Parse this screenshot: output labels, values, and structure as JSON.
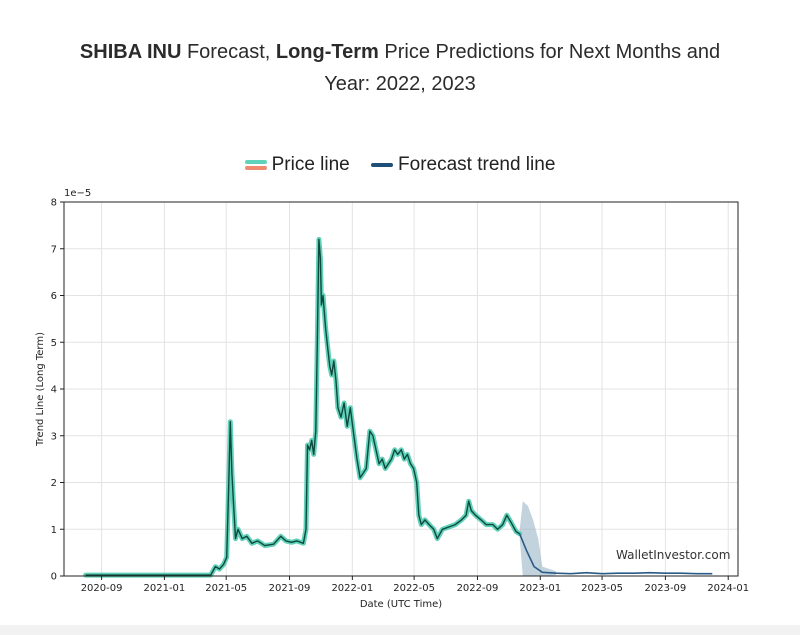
{
  "title": {
    "part1_bold": "SHIBA INU",
    "part2": " Forecast, ",
    "part3_bold": "Long-Term",
    "part4": " Price Predictions for Next Months and",
    "line2": "Year: 2022, 2023"
  },
  "legend": [
    {
      "label": "Price line",
      "colors": [
        "#5fd3b9",
        "#ef8a6f"
      ]
    },
    {
      "label": "Forecast trend line",
      "colors": [
        "#1f4e79"
      ]
    }
  ],
  "watermark": "WalletInvestor.com",
  "chart_data": {
    "type": "line",
    "xlabel": "Date (UTC Time)",
    "ylabel": "Trend Line (Long Term)",
    "y_multiplier": "1e−5",
    "ylim": [
      0,
      8
    ],
    "xlim": [
      "2020-06-20",
      "2024-01-20"
    ],
    "yticks": [
      0,
      1,
      2,
      3,
      4,
      5,
      6,
      7,
      8
    ],
    "xticks": [
      "2020-09",
      "2021-01",
      "2021-05",
      "2021-09",
      "2022-01",
      "2022-05",
      "2022-09",
      "2023-01",
      "2023-05",
      "2023-09",
      "2024-01"
    ],
    "grid": true,
    "legend_position": "top-center",
    "colors": {
      "price_outer": "#46c9ad",
      "price_inner": "#0d4a3e",
      "forecast": "#2a5a86",
      "band": "#9ab6c7"
    },
    "series": [
      {
        "name": "Price line",
        "points": [
          [
            "2020-08-01",
            0.02
          ],
          [
            "2020-10-01",
            0.02
          ],
          [
            "2020-12-01",
            0.02
          ],
          [
            "2021-02-01",
            0.02
          ],
          [
            "2021-04-01",
            0.02
          ],
          [
            "2021-04-10",
            0.2
          ],
          [
            "2021-04-18",
            0.15
          ],
          [
            "2021-04-26",
            0.25
          ],
          [
            "2021-05-02",
            0.4
          ],
          [
            "2021-05-06",
            2.0
          ],
          [
            "2021-05-09",
            3.3
          ],
          [
            "2021-05-12",
            2.2
          ],
          [
            "2021-05-15",
            1.6
          ],
          [
            "2021-05-19",
            0.8
          ],
          [
            "2021-05-24",
            1.0
          ],
          [
            "2021-06-01",
            0.8
          ],
          [
            "2021-06-10",
            0.85
          ],
          [
            "2021-06-20",
            0.7
          ],
          [
            "2021-07-01",
            0.75
          ],
          [
            "2021-07-15",
            0.65
          ],
          [
            "2021-08-01",
            0.68
          ],
          [
            "2021-08-15",
            0.85
          ],
          [
            "2021-08-25",
            0.75
          ],
          [
            "2021-09-05",
            0.72
          ],
          [
            "2021-09-15",
            0.75
          ],
          [
            "2021-09-28",
            0.7
          ],
          [
            "2021-10-03",
            1.0
          ],
          [
            "2021-10-06",
            2.8
          ],
          [
            "2021-10-10",
            2.7
          ],
          [
            "2021-10-14",
            2.9
          ],
          [
            "2021-10-18",
            2.6
          ],
          [
            "2021-10-22",
            3.1
          ],
          [
            "2021-10-25",
            5.0
          ],
          [
            "2021-10-28",
            7.2
          ],
          [
            "2021-10-31",
            6.8
          ],
          [
            "2021-11-02",
            5.8
          ],
          [
            "2021-11-05",
            6.0
          ],
          [
            "2021-11-10",
            5.3
          ],
          [
            "2021-11-14",
            4.9
          ],
          [
            "2021-11-18",
            4.5
          ],
          [
            "2021-11-22",
            4.3
          ],
          [
            "2021-11-26",
            4.6
          ],
          [
            "2021-11-30",
            4.2
          ],
          [
            "2021-12-04",
            3.6
          ],
          [
            "2021-12-10",
            3.4
          ],
          [
            "2021-12-16",
            3.7
          ],
          [
            "2021-12-22",
            3.2
          ],
          [
            "2021-12-28",
            3.6
          ],
          [
            "2022-01-04",
            3.0
          ],
          [
            "2022-01-10",
            2.5
          ],
          [
            "2022-01-16",
            2.1
          ],
          [
            "2022-01-22",
            2.2
          ],
          [
            "2022-01-28",
            2.3
          ],
          [
            "2022-02-04",
            3.1
          ],
          [
            "2022-02-10",
            3.0
          ],
          [
            "2022-02-16",
            2.7
          ],
          [
            "2022-02-22",
            2.4
          ],
          [
            "2022-02-28",
            2.5
          ],
          [
            "2022-03-06",
            2.3
          ],
          [
            "2022-03-12",
            2.4
          ],
          [
            "2022-03-18",
            2.5
          ],
          [
            "2022-03-24",
            2.7
          ],
          [
            "2022-03-30",
            2.6
          ],
          [
            "2022-04-06",
            2.7
          ],
          [
            "2022-04-12",
            2.5
          ],
          [
            "2022-04-18",
            2.6
          ],
          [
            "2022-04-24",
            2.4
          ],
          [
            "2022-04-30",
            2.3
          ],
          [
            "2022-05-06",
            2.0
          ],
          [
            "2022-05-10",
            1.3
          ],
          [
            "2022-05-15",
            1.1
          ],
          [
            "2022-05-22",
            1.2
          ],
          [
            "2022-05-30",
            1.1
          ],
          [
            "2022-06-08",
            1.0
          ],
          [
            "2022-06-15",
            0.8
          ],
          [
            "2022-06-25",
            1.0
          ],
          [
            "2022-07-08",
            1.05
          ],
          [
            "2022-07-20",
            1.1
          ],
          [
            "2022-08-01",
            1.2
          ],
          [
            "2022-08-10",
            1.3
          ],
          [
            "2022-08-15",
            1.6
          ],
          [
            "2022-08-20",
            1.4
          ],
          [
            "2022-08-28",
            1.3
          ],
          [
            "2022-09-08",
            1.2
          ],
          [
            "2022-09-18",
            1.1
          ],
          [
            "2022-10-01",
            1.1
          ],
          [
            "2022-10-10",
            1.0
          ],
          [
            "2022-10-20",
            1.1
          ],
          [
            "2022-10-28",
            1.3
          ],
          [
            "2022-11-05",
            1.15
          ],
          [
            "2022-11-15",
            0.95
          ],
          [
            "2022-11-22",
            0.9
          ]
        ]
      },
      {
        "name": "Forecast trend line",
        "points": [
          [
            "2022-11-22",
            0.9
          ],
          [
            "2022-12-05",
            0.55
          ],
          [
            "2022-12-20",
            0.2
          ],
          [
            "2023-01-05",
            0.08
          ],
          [
            "2023-02-01",
            0.06
          ],
          [
            "2023-03-01",
            0.05
          ],
          [
            "2023-04-01",
            0.07
          ],
          [
            "2023-05-01",
            0.05
          ],
          [
            "2023-06-01",
            0.06
          ],
          [
            "2023-07-01",
            0.06
          ],
          [
            "2023-08-01",
            0.07
          ],
          [
            "2023-09-01",
            0.06
          ],
          [
            "2023-10-01",
            0.06
          ],
          [
            "2023-11-01",
            0.05
          ],
          [
            "2023-12-01",
            0.05
          ]
        ],
        "band_upper": [
          [
            "2022-11-22",
            1.0
          ],
          [
            "2022-11-28",
            1.6
          ],
          [
            "2022-12-08",
            1.5
          ],
          [
            "2022-12-18",
            1.2
          ],
          [
            "2022-12-28",
            0.8
          ],
          [
            "2023-01-05",
            0.2
          ],
          [
            "2023-02-01",
            0.1
          ]
        ],
        "band_lower": [
          [
            "2022-11-22",
            0.8
          ],
          [
            "2022-11-28",
            0.0
          ],
          [
            "2022-12-08",
            0.0
          ],
          [
            "2022-12-18",
            0.0
          ],
          [
            "2022-12-28",
            0.0
          ],
          [
            "2023-01-05",
            0.0
          ],
          [
            "2023-02-01",
            0.02
          ]
        ]
      }
    ]
  }
}
